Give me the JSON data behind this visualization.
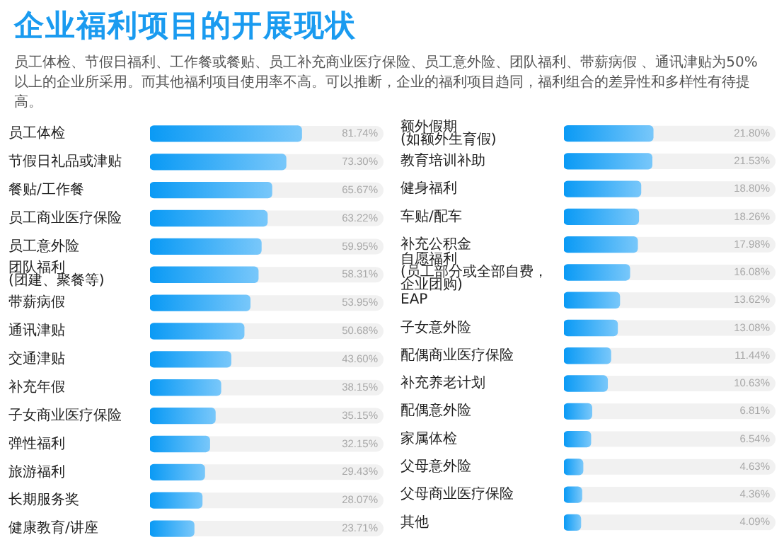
{
  "chart_data": [
    {
      "type": "bar",
      "orientation": "horizontal",
      "title": "企业福利项目的开展现状",
      "subtitle": "员工体检、节假日福利、工作餐或餐贴、员工补充商业医疗保险、员工意外险、团队福利、带薪病假 、通讯津贴为50%以上的企业所采用。而其他福利项目使用率不高。可以推断，企业的福利项目趋同，福利组合的差异性和多样性有待提高。",
      "categories": [
        "员工体检",
        "节假日礼品或津贴",
        "餐贴/工作餐",
        "员工商业医疗保险",
        "员工意外险",
        "团队福利(团建、聚餐等)",
        "带薪病假",
        "通讯津贴",
        "交通津贴",
        "补充年假",
        "子女商业医疗保险",
        "弹性福利",
        "旅游福利",
        "长期服务奖",
        "健康教育/讲座"
      ],
      "values": [
        81.74,
        73.3,
        65.67,
        63.22,
        59.95,
        58.31,
        53.95,
        50.68,
        43.6,
        38.15,
        35.15,
        32.15,
        29.43,
        28.07,
        23.71
      ],
      "value_labels": [
        "81.74%",
        "73.30%",
        "65.67%",
        "63.22%",
        "59.95%",
        "58.31%",
        "53.95%",
        "50.68%",
        "43.60%",
        "38.15%",
        "35.15%",
        "32.15%",
        "29.43%",
        "28.07%",
        "23.71%"
      ],
      "color": "#0a9af5",
      "tick_labels": "y",
      "grid": false
    },
    {
      "type": "bar",
      "orientation": "horizontal",
      "categories": [
        "额外假期(如额外生育假)",
        "教育培训补助",
        "健身福利",
        "车贴/配车",
        "补充公积金",
        "自愿福利(员工部分或全部自费，企业团购)",
        "EAP",
        "子女意外险",
        "配偶商业医疗保险",
        "补充养老计划",
        "配偶意外险",
        "家属体检",
        "父母意外险",
        "父母商业医疗保险",
        "其他"
      ],
      "values": [
        21.8,
        21.53,
        18.8,
        18.26,
        17.98,
        16.08,
        13.62,
        13.08,
        11.44,
        10.63,
        6.81,
        6.54,
        4.63,
        4.36,
        4.09
      ],
      "value_labels": [
        "21.80%",
        "21.53%",
        "18.80%",
        "18.26%",
        "17.98%",
        "16.08%",
        "13.62%",
        "13.08%",
        "11.44%",
        "10.63%",
        "6.81%",
        "6.54%",
        "4.63%",
        "4.36%",
        "4.09%"
      ],
      "color": "#0a9af5",
      "tick_labels": "y",
      "grid": false
    }
  ]
}
